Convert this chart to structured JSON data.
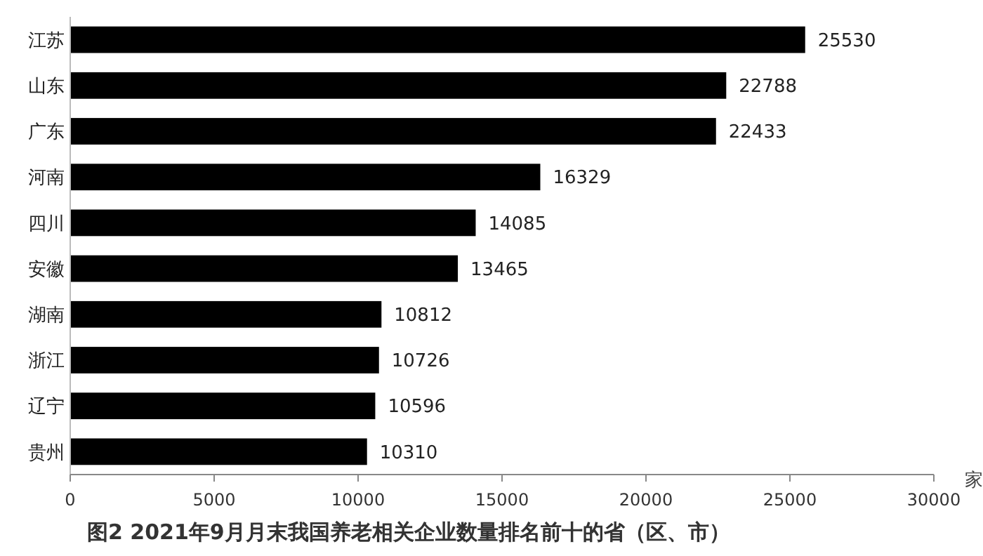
{
  "chart_data": {
    "type": "bar",
    "orientation": "horizontal",
    "title": "图2 2021年9月月末我国养老相关企业数量排名前十的省（区、市）",
    "xlabel": "家",
    "categories": [
      "江苏",
      "山东",
      "广东",
      "河南",
      "四川",
      "安徽",
      "湖南",
      "浙江",
      "辽宁",
      "贵州"
    ],
    "values": [
      25530,
      22788,
      22433,
      16329,
      14085,
      13465,
      10812,
      10726,
      10596,
      10310
    ],
    "color": "#000000",
    "xlim": [
      0,
      30000
    ],
    "xticks": [
      0,
      5000,
      10000,
      15000,
      20000,
      25000,
      30000
    ],
    "data_labels": true,
    "grid": false
  }
}
